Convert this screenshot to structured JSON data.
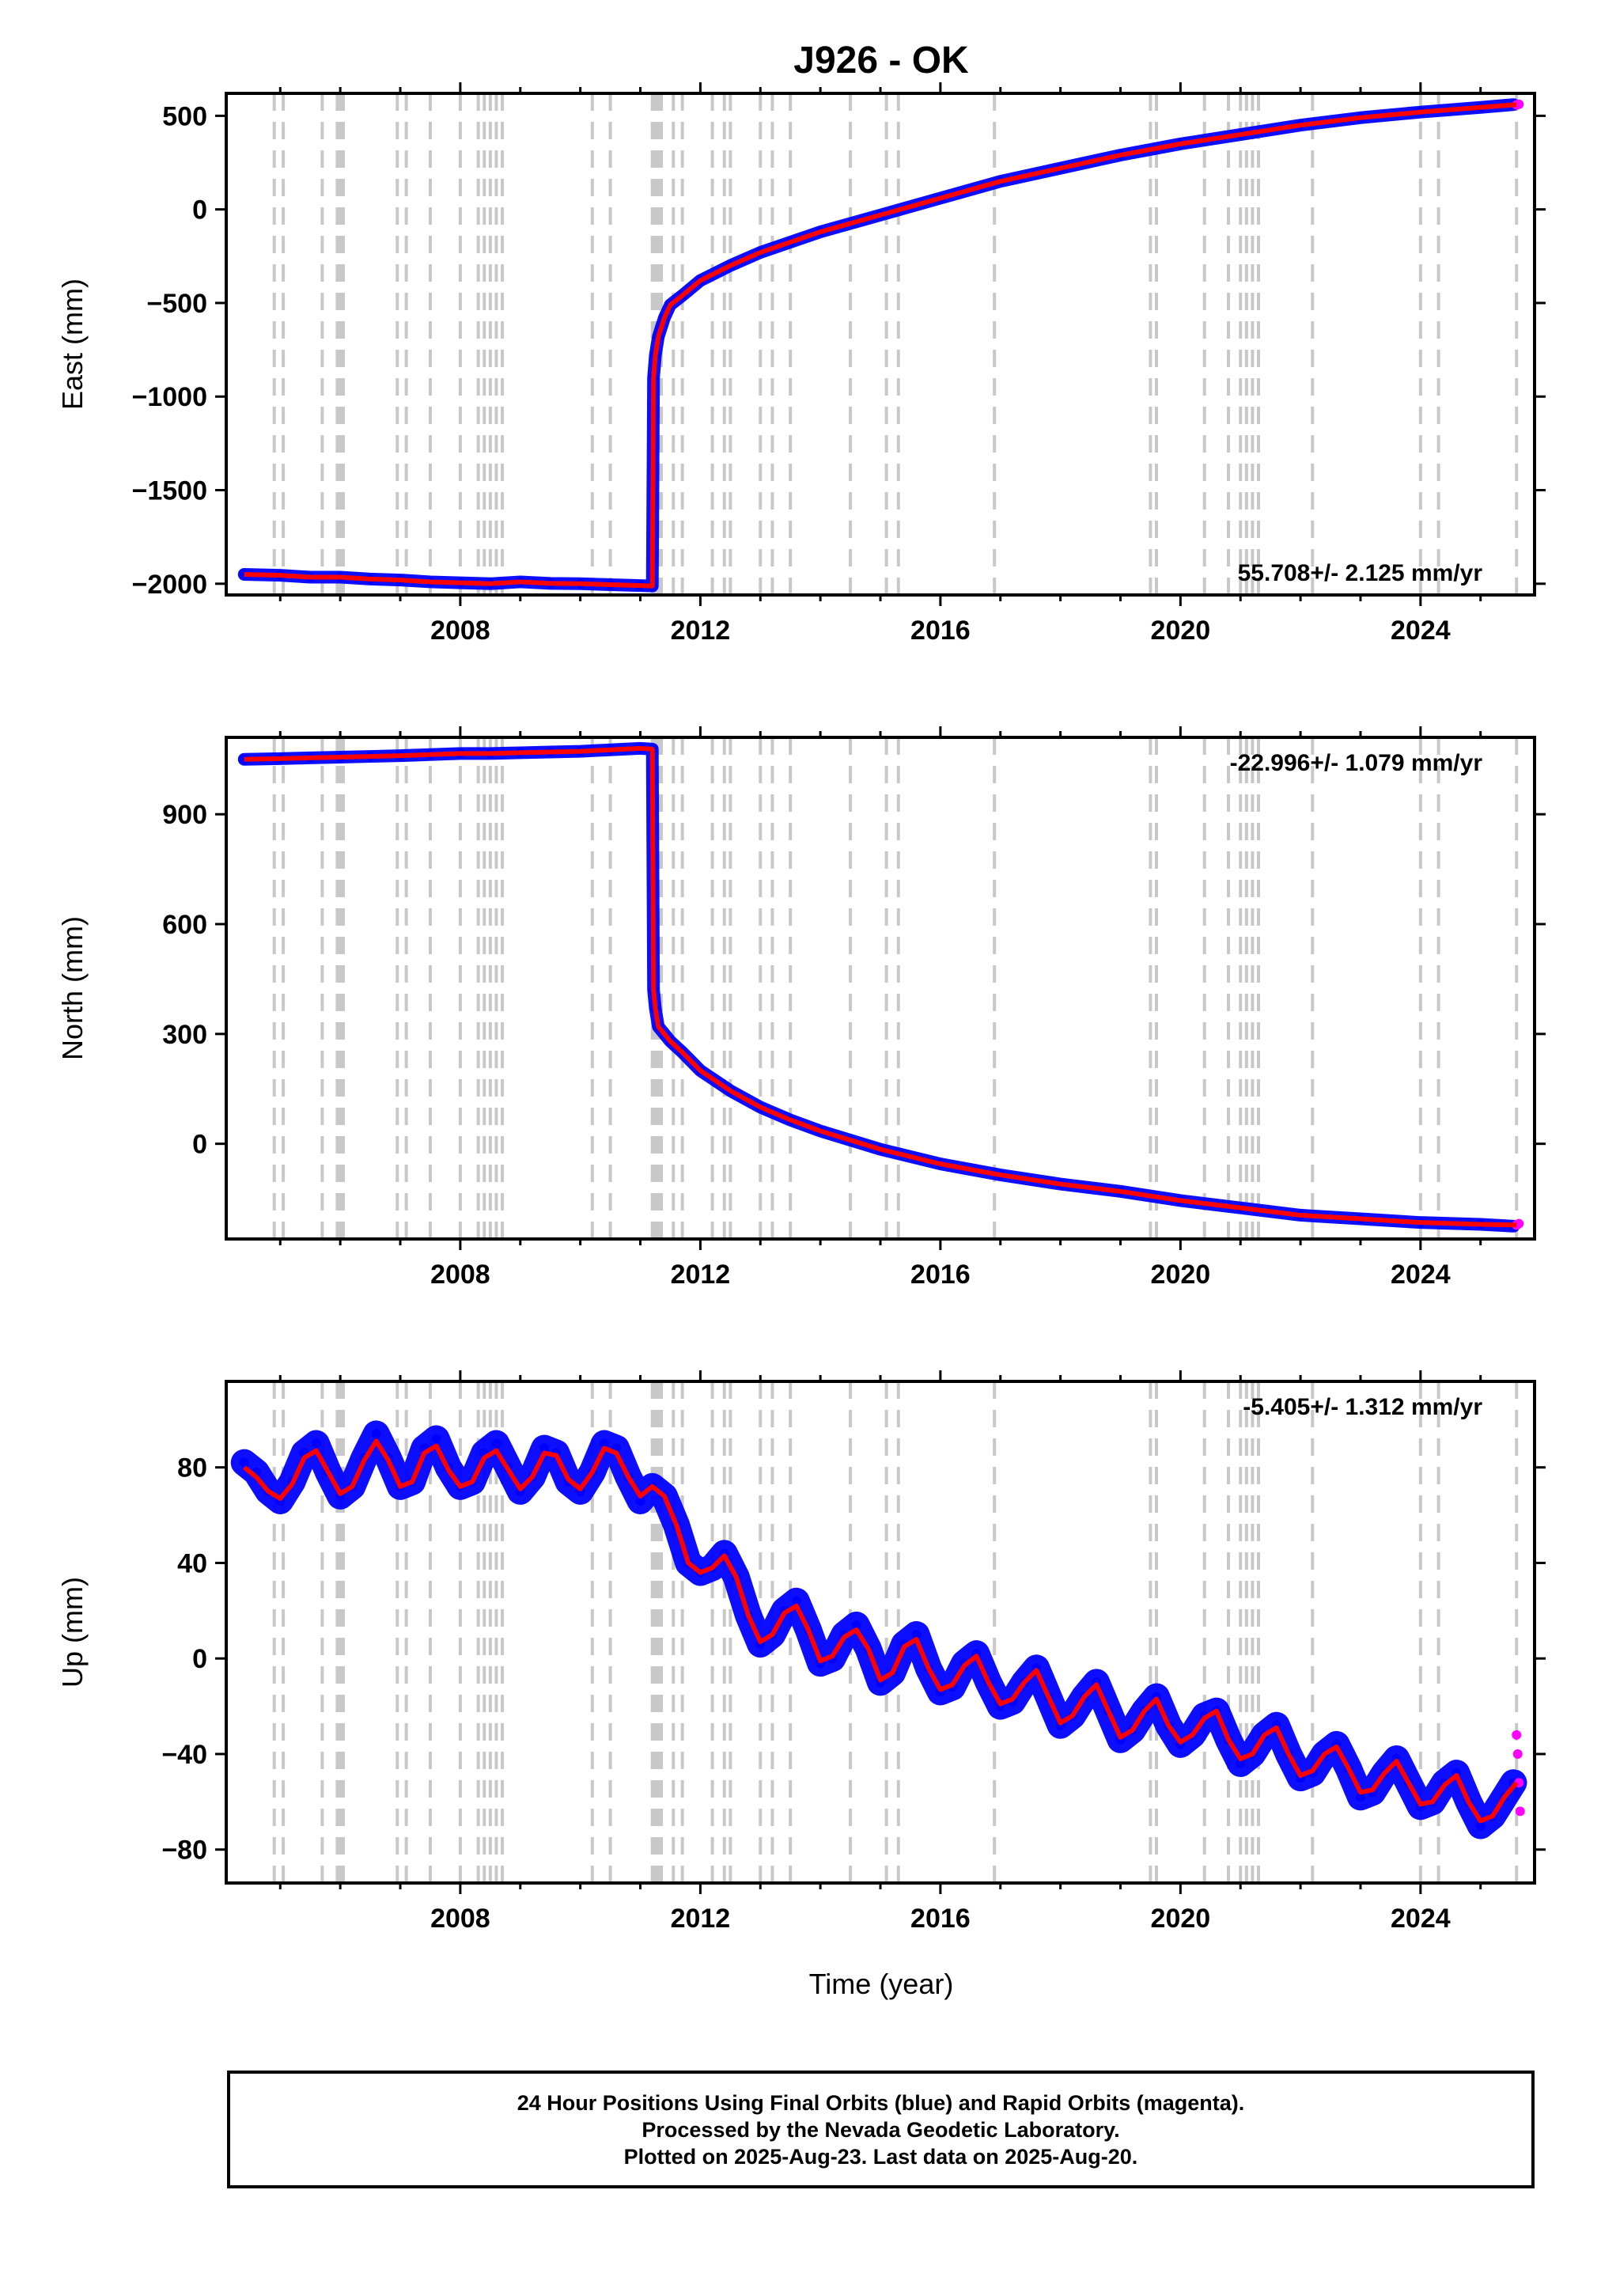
{
  "title": "J926 - OK",
  "xlabel": "Time (year)",
  "colors": {
    "final_orbits": "#0000ff",
    "rapid_orbits": "#ff00ff",
    "model_fit": "#ff0000",
    "event_lines": "#c8c8c8"
  },
  "caption": {
    "line1": "24 Hour Positions Using Final Orbits (blue) and Rapid Orbits (magenta).",
    "line2": "Processed by the Nevada Geodetic Laboratory.",
    "line3": "Plotted on 2025-Aug-23. Last data on 2025-Aug-20."
  },
  "event_lines_years": [
    2004.9,
    2005.05,
    2005.7,
    2005.95,
    2006.0,
    2006.05,
    2006.95,
    2007.1,
    2007.5,
    2008.0,
    2008.3,
    2008.4,
    2008.5,
    2008.6,
    2008.7,
    2010.2,
    2010.5,
    2011.2,
    2011.25,
    2011.3,
    2011.35,
    2011.55,
    2011.7,
    2012.2,
    2012.4,
    2012.5,
    2013.0,
    2013.2,
    2013.5,
    2014.5,
    2015.1,
    2015.3,
    2016.9,
    2019.5,
    2019.6,
    2020.4,
    2020.8,
    2021.0,
    2021.1,
    2021.2,
    2021.3,
    2022.2,
    2024.0,
    2024.3,
    2025.6
  ],
  "chart_data": [
    {
      "type": "scatter",
      "ylabel": "East (mm)",
      "xlim": [
        2004.1,
        2025.9
      ],
      "ylim": [
        -2060,
        620
      ],
      "yticks": [
        -2000,
        -1500,
        -1000,
        -500,
        0,
        500
      ],
      "xticks": [
        2008,
        2012,
        2016,
        2020,
        2024
      ],
      "xtick_labels": [
        "2008",
        "2012",
        "2016",
        "2020",
        "2024"
      ],
      "rate_label": "55.708+/- 2.125 mm/yr",
      "rate_position": "bottom-right",
      "grid": false,
      "series": [
        {
          "style": "final-orbits",
          "x": [
            2004.4,
            2005.0,
            2005.5,
            2006.0,
            2006.5,
            2007.0,
            2007.5,
            2008.0,
            2008.5,
            2009.0,
            2009.5,
            2010.0,
            2010.5,
            2011.0,
            2011.2,
            2011.22,
            2011.25,
            2011.3,
            2011.4,
            2011.5,
            2011.7,
            2012.0,
            2012.5,
            2013.0,
            2013.5,
            2014.0,
            2015.0,
            2016.0,
            2017.0,
            2018.0,
            2019.0,
            2020.0,
            2021.0,
            2022.0,
            2023.0,
            2024.0,
            2025.0,
            2025.55
          ],
          "y": [
            -1950,
            -1955,
            -1965,
            -1965,
            -1975,
            -1980,
            -1990,
            -1995,
            -2000,
            -1990,
            -1998,
            -2000,
            -2005,
            -2010,
            -2012,
            -900,
            -780,
            -680,
            -580,
            -510,
            -460,
            -380,
            -300,
            -230,
            -175,
            -120,
            -30,
            60,
            150,
            220,
            290,
            350,
            400,
            450,
            490,
            520,
            545,
            560
          ]
        },
        {
          "style": "rapid-orbits",
          "x": [
            2025.6,
            2025.62,
            2025.64
          ],
          "y": [
            558,
            560,
            562
          ]
        },
        {
          "style": "model-fit",
          "x": [
            2004.4,
            2005.0,
            2005.5,
            2006.0,
            2006.5,
            2007.0,
            2007.5,
            2008.0,
            2008.5,
            2009.0,
            2009.5,
            2010.0,
            2010.5,
            2011.0,
            2011.2,
            2011.22,
            2011.25,
            2011.3,
            2011.4,
            2011.5,
            2011.7,
            2012.0,
            2012.5,
            2013.0,
            2013.5,
            2014.0,
            2015.0,
            2016.0,
            2017.0,
            2018.0,
            2019.0,
            2020.0,
            2021.0,
            2022.0,
            2023.0,
            2024.0,
            2025.0,
            2025.6
          ],
          "y": [
            -1950,
            -1955,
            -1965,
            -1965,
            -1975,
            -1980,
            -1990,
            -1995,
            -2000,
            -1990,
            -1998,
            -2000,
            -2005,
            -2010,
            -2012,
            -900,
            -780,
            -680,
            -580,
            -510,
            -460,
            -380,
            -300,
            -230,
            -175,
            -120,
            -30,
            60,
            150,
            220,
            290,
            350,
            400,
            450,
            490,
            520,
            545,
            560
          ]
        }
      ]
    },
    {
      "type": "scatter",
      "ylabel": "North (mm)",
      "xlim": [
        2004.1,
        2025.9
      ],
      "ylim": [
        -260,
        1110
      ],
      "yticks": [
        0,
        300,
        600,
        900
      ],
      "xticks": [
        2008,
        2012,
        2016,
        2020,
        2024
      ],
      "xtick_labels": [
        "2008",
        "2012",
        "2016",
        "2020",
        "2024"
      ],
      "rate_label": "-22.996+/- 1.079 mm/yr",
      "rate_position": "top-right",
      "grid": false,
      "series": [
        {
          "style": "final-orbits",
          "x": [
            2004.4,
            2005.0,
            2005.5,
            2006.0,
            2006.5,
            2007.0,
            2007.5,
            2008.0,
            2008.5,
            2009.0,
            2009.5,
            2010.0,
            2010.5,
            2011.0,
            2011.2,
            2011.22,
            2011.25,
            2011.3,
            2011.5,
            2011.7,
            2012.0,
            2012.5,
            2013.0,
            2013.5,
            2014.0,
            2015.0,
            2016.0,
            2017.0,
            2018.0,
            2019.0,
            2020.0,
            2021.0,
            2022.0,
            2023.0,
            2024.0,
            2025.0,
            2025.55
          ],
          "y": [
            1050,
            1052,
            1054,
            1056,
            1058,
            1060,
            1063,
            1066,
            1066,
            1068,
            1070,
            1072,
            1076,
            1080,
            1078,
            420,
            370,
            320,
            280,
            250,
            200,
            145,
            100,
            65,
            35,
            -15,
            -55,
            -85,
            -110,
            -130,
            -155,
            -175,
            -195,
            -205,
            -215,
            -220,
            -225
          ]
        },
        {
          "style": "rapid-orbits",
          "x": [
            2025.6,
            2025.62,
            2025.64
          ],
          "y": [
            -222,
            -220,
            -218
          ]
        },
        {
          "style": "model-fit",
          "x": [
            2004.4,
            2005.0,
            2005.5,
            2006.0,
            2006.5,
            2007.0,
            2007.5,
            2008.0,
            2008.5,
            2009.0,
            2009.5,
            2010.0,
            2010.5,
            2011.0,
            2011.2,
            2011.22,
            2011.25,
            2011.3,
            2011.5,
            2011.7,
            2012.0,
            2012.5,
            2013.0,
            2013.5,
            2014.0,
            2015.0,
            2016.0,
            2017.0,
            2018.0,
            2019.0,
            2020.0,
            2021.0,
            2022.0,
            2023.0,
            2024.0,
            2025.0,
            2025.6
          ],
          "y": [
            1050,
            1052,
            1054,
            1056,
            1058,
            1060,
            1063,
            1066,
            1066,
            1068,
            1070,
            1072,
            1076,
            1080,
            1078,
            420,
            370,
            320,
            280,
            250,
            200,
            145,
            100,
            65,
            35,
            -15,
            -55,
            -85,
            -110,
            -130,
            -155,
            -175,
            -195,
            -205,
            -215,
            -220,
            -222
          ]
        }
      ]
    },
    {
      "type": "scatter",
      "ylabel": "Up (mm)",
      "xlim": [
        2004.1,
        2025.9
      ],
      "ylim": [
        -94,
        116
      ],
      "yticks": [
        -80,
        -40,
        0,
        40,
        80
      ],
      "xticks": [
        2008,
        2012,
        2016,
        2020,
        2024
      ],
      "xtick_labels": [
        "2008",
        "2012",
        "2016",
        "2020",
        "2024"
      ],
      "rate_label": "-5.405+/- 1.312 mm/yr",
      "rate_position": "top-right",
      "grid": false,
      "series": [
        {
          "style": "final-orbits",
          "x": [
            2004.4,
            2004.6,
            2004.8,
            2005.0,
            2005.2,
            2005.4,
            2005.6,
            2005.8,
            2006.0,
            2006.2,
            2006.4,
            2006.6,
            2006.8,
            2007.0,
            2007.2,
            2007.4,
            2007.6,
            2007.8,
            2008.0,
            2008.2,
            2008.4,
            2008.6,
            2008.8,
            2009.0,
            2009.2,
            2009.4,
            2009.6,
            2009.8,
            2010.0,
            2010.2,
            2010.4,
            2010.6,
            2010.8,
            2011.0,
            2011.2,
            2011.4,
            2011.6,
            2011.8,
            2012.0,
            2012.2,
            2012.4,
            2012.6,
            2012.8,
            2013.0,
            2013.2,
            2013.4,
            2013.6,
            2013.8,
            2014.0,
            2014.2,
            2014.4,
            2014.6,
            2014.8,
            2015.0,
            2015.2,
            2015.4,
            2015.6,
            2015.8,
            2016.0,
            2016.2,
            2016.4,
            2016.6,
            2016.8,
            2017.0,
            2017.2,
            2017.4,
            2017.6,
            2017.8,
            2018.0,
            2018.2,
            2018.4,
            2018.6,
            2018.8,
            2019.0,
            2019.2,
            2019.4,
            2019.6,
            2019.8,
            2020.0,
            2020.2,
            2020.4,
            2020.6,
            2020.8,
            2021.0,
            2021.2,
            2021.4,
            2021.6,
            2021.8,
            2022.0,
            2022.2,
            2022.4,
            2022.6,
            2022.8,
            2023.0,
            2023.2,
            2023.4,
            2023.6,
            2023.8,
            2024.0,
            2024.2,
            2024.4,
            2024.6,
            2024.8,
            2025.0,
            2025.2,
            2025.4,
            2025.55
          ],
          "y": [
            82,
            78,
            70,
            66,
            74,
            86,
            90,
            78,
            68,
            72,
            84,
            94,
            84,
            72,
            74,
            88,
            92,
            80,
            72,
            74,
            86,
            90,
            80,
            70,
            76,
            88,
            86,
            74,
            70,
            78,
            90,
            88,
            76,
            66,
            72,
            68,
            56,
            40,
            36,
            38,
            44,
            34,
            18,
            6,
            10,
            20,
            24,
            12,
            -2,
            0,
            10,
            14,
            4,
            -10,
            -6,
            6,
            10,
            -4,
            -14,
            -12,
            -2,
            2,
            -10,
            -20,
            -18,
            -10,
            -4,
            -16,
            -28,
            -24,
            -16,
            -10,
            -22,
            -34,
            -30,
            -22,
            -16,
            -28,
            -36,
            -32,
            -24,
            -22,
            -34,
            -44,
            -40,
            -32,
            -28,
            -40,
            -50,
            -48,
            -40,
            -36,
            -46,
            -58,
            -56,
            -48,
            -42,
            -52,
            -62,
            -60,
            -52,
            -48,
            -60,
            -70,
            -66,
            -58,
            -52
          ]
        },
        {
          "style": "rapid-orbits",
          "x": [
            2025.6,
            2025.62,
            2025.64,
            2025.66
          ],
          "y": [
            -32,
            -40,
            -52,
            -64
          ]
        },
        {
          "style": "model-fit",
          "x": [
            2004.4,
            2004.6,
            2004.8,
            2005.0,
            2005.2,
            2005.4,
            2005.6,
            2005.8,
            2006.0,
            2006.2,
            2006.4,
            2006.6,
            2006.8,
            2007.0,
            2007.2,
            2007.4,
            2007.6,
            2007.8,
            2008.0,
            2008.2,
            2008.4,
            2008.6,
            2008.8,
            2009.0,
            2009.2,
            2009.4,
            2009.6,
            2009.8,
            2010.0,
            2010.2,
            2010.4,
            2010.6,
            2010.8,
            2011.0,
            2011.2,
            2011.4,
            2011.6,
            2011.8,
            2012.0,
            2012.2,
            2012.4,
            2012.6,
            2012.8,
            2013.0,
            2013.2,
            2013.4,
            2013.6,
            2013.8,
            2014.0,
            2014.2,
            2014.4,
            2014.6,
            2014.8,
            2015.0,
            2015.2,
            2015.4,
            2015.6,
            2015.8,
            2016.0,
            2016.2,
            2016.4,
            2016.6,
            2016.8,
            2017.0,
            2017.2,
            2017.4,
            2017.6,
            2017.8,
            2018.0,
            2018.2,
            2018.4,
            2018.6,
            2018.8,
            2019.0,
            2019.2,
            2019.4,
            2019.6,
            2019.8,
            2020.0,
            2020.2,
            2020.4,
            2020.6,
            2020.8,
            2021.0,
            2021.2,
            2021.4,
            2021.6,
            2021.8,
            2022.0,
            2022.2,
            2022.4,
            2022.6,
            2022.8,
            2023.0,
            2023.2,
            2023.4,
            2023.6,
            2023.8,
            2024.0,
            2024.2,
            2024.4,
            2024.6,
            2024.8,
            2025.0,
            2025.2,
            2025.4,
            2025.6
          ],
          "y": [
            80,
            76,
            70,
            67,
            73,
            84,
            87,
            78,
            69,
            72,
            83,
            91,
            83,
            72,
            74,
            86,
            89,
            79,
            72,
            74,
            84,
            87,
            79,
            71,
            76,
            86,
            85,
            75,
            71,
            78,
            88,
            86,
            76,
            68,
            72,
            68,
            56,
            40,
            36,
            38,
            43,
            34,
            18,
            7,
            10,
            19,
            22,
            12,
            -1,
            1,
            9,
            12,
            4,
            -9,
            -6,
            5,
            8,
            -4,
            -13,
            -11,
            -3,
            1,
            -10,
            -19,
            -17,
            -10,
            -5,
            -16,
            -27,
            -24,
            -16,
            -11,
            -22,
            -33,
            -30,
            -22,
            -17,
            -28,
            -35,
            -32,
            -25,
            -22,
            -34,
            -42,
            -40,
            -32,
            -29,
            -40,
            -49,
            -47,
            -40,
            -37,
            -46,
            -56,
            -55,
            -48,
            -43,
            -52,
            -61,
            -60,
            -53,
            -49,
            -60,
            -68,
            -66,
            -58,
            -52
          ]
        }
      ]
    }
  ]
}
